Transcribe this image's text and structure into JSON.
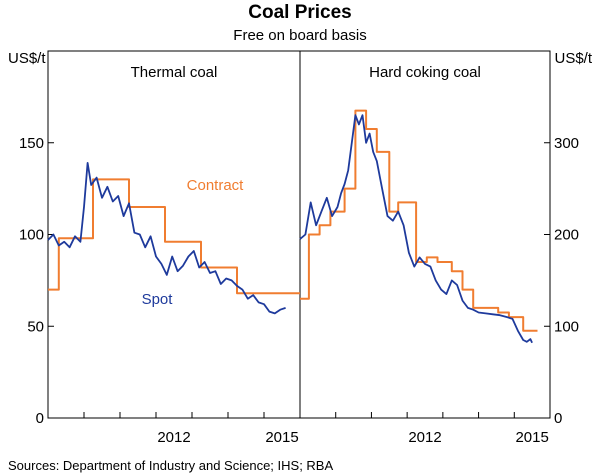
{
  "title": "Coal Prices",
  "subtitle": "Free on board basis",
  "source": "Sources:   Department of Industry and Science; IHS; RBA",
  "colors": {
    "contract": "#f07d30",
    "spot": "#1e3a9c",
    "axis": "#000000"
  },
  "chart_data": [
    {
      "type": "line",
      "panel": "Thermal coal",
      "title": "Thermal coal",
      "ylabel": "US$/t",
      "ylim": [
        0,
        200
      ],
      "yticks": [
        0,
        50,
        100,
        150
      ],
      "xlim": [
        2009.0,
        2016.0
      ],
      "xtick_labels": [
        "2012",
        "2015"
      ],
      "xtick_label_positions": [
        2012.5,
        2015.5
      ],
      "series_labels": {
        "contract": "Contract",
        "spot": "Spot"
      },
      "series": [
        {
          "name": "Contract",
          "step": true,
          "x": [
            2009.0,
            2009.3,
            2010.25,
            2011.25,
            2012.25,
            2013.25,
            2014.25,
            2015.25,
            2016.0
          ],
          "values": [
            70,
            98,
            130,
            115,
            96,
            82,
            68,
            68,
            68
          ]
        },
        {
          "name": "Spot",
          "step": false,
          "x": [
            2009.0,
            2009.15,
            2009.3,
            2009.45,
            2009.6,
            2009.75,
            2009.9,
            2010.0,
            2010.1,
            2010.2,
            2010.35,
            2010.5,
            2010.65,
            2010.8,
            2010.95,
            2011.1,
            2011.25,
            2011.4,
            2011.55,
            2011.7,
            2011.85,
            2012.0,
            2012.15,
            2012.3,
            2012.45,
            2012.6,
            2012.75,
            2012.9,
            2013.05,
            2013.2,
            2013.35,
            2013.5,
            2013.65,
            2013.8,
            2013.95,
            2014.1,
            2014.25,
            2014.4,
            2014.55,
            2014.7,
            2014.85,
            2015.0,
            2015.15,
            2015.3,
            2015.45,
            2015.6
          ],
          "values": [
            97,
            100,
            94,
            96,
            93,
            99,
            96,
            115,
            139,
            127,
            131,
            120,
            126,
            118,
            121,
            110,
            117,
            101,
            100,
            93,
            99,
            88,
            84,
            78,
            88,
            80,
            83,
            88,
            91,
            82,
            85,
            79,
            80,
            73,
            76,
            75,
            72,
            70,
            65,
            67,
            63,
            62,
            58,
            57,
            59,
            60
          ]
        }
      ]
    },
    {
      "type": "line",
      "panel": "Hard coking coal",
      "title": "Hard coking coal",
      "ylabel": "US$/t",
      "ylim": [
        0,
        400
      ],
      "yticks": [
        0,
        100,
        200,
        300
      ],
      "xlim": [
        2009.0,
        2016.0
      ],
      "xtick_labels": [
        "2012",
        "2015"
      ],
      "xtick_label_positions": [
        2012.5,
        2015.5
      ],
      "series": [
        {
          "name": "Contract",
          "step": true,
          "x": [
            2009.0,
            2009.25,
            2009.55,
            2009.85,
            2010.25,
            2010.55,
            2010.85,
            2011.15,
            2011.5,
            2011.75,
            2012.25,
            2012.55,
            2012.85,
            2013.25,
            2013.55,
            2013.85,
            2014.25,
            2014.55,
            2014.85,
            2015.25,
            2015.65
          ],
          "values": [
            130,
            200,
            210,
            225,
            250,
            335,
            315,
            290,
            225,
            235,
            170,
            175,
            170,
            160,
            140,
            120,
            120,
            115,
            110,
            95,
            95
          ]
        },
        {
          "name": "Spot",
          "step": false,
          "x": [
            2009.0,
            2009.15,
            2009.3,
            2009.45,
            2009.6,
            2009.75,
            2009.9,
            2010.05,
            2010.15,
            2010.25,
            2010.35,
            2010.45,
            2010.55,
            2010.65,
            2010.75,
            2010.85,
            2010.95,
            2011.05,
            2011.15,
            2011.3,
            2011.45,
            2011.6,
            2011.75,
            2011.9,
            2012.05,
            2012.2,
            2012.35,
            2012.5,
            2012.65,
            2012.8,
            2012.95,
            2013.1,
            2013.25,
            2013.4,
            2013.55,
            2013.7,
            2013.85,
            2014.0,
            2014.2,
            2014.4,
            2014.6,
            2014.8,
            2014.95,
            2015.1,
            2015.25,
            2015.35,
            2015.45,
            2015.5
          ],
          "values": [
            195,
            200,
            235,
            210,
            225,
            240,
            220,
            230,
            245,
            255,
            270,
            300,
            330,
            320,
            330,
            300,
            310,
            290,
            280,
            250,
            220,
            215,
            225,
            210,
            180,
            165,
            175,
            168,
            165,
            150,
            140,
            135,
            150,
            145,
            128,
            120,
            118,
            115,
            114,
            113,
            112,
            110,
            108,
            95,
            85,
            83,
            86,
            82
          ]
        }
      ]
    }
  ]
}
